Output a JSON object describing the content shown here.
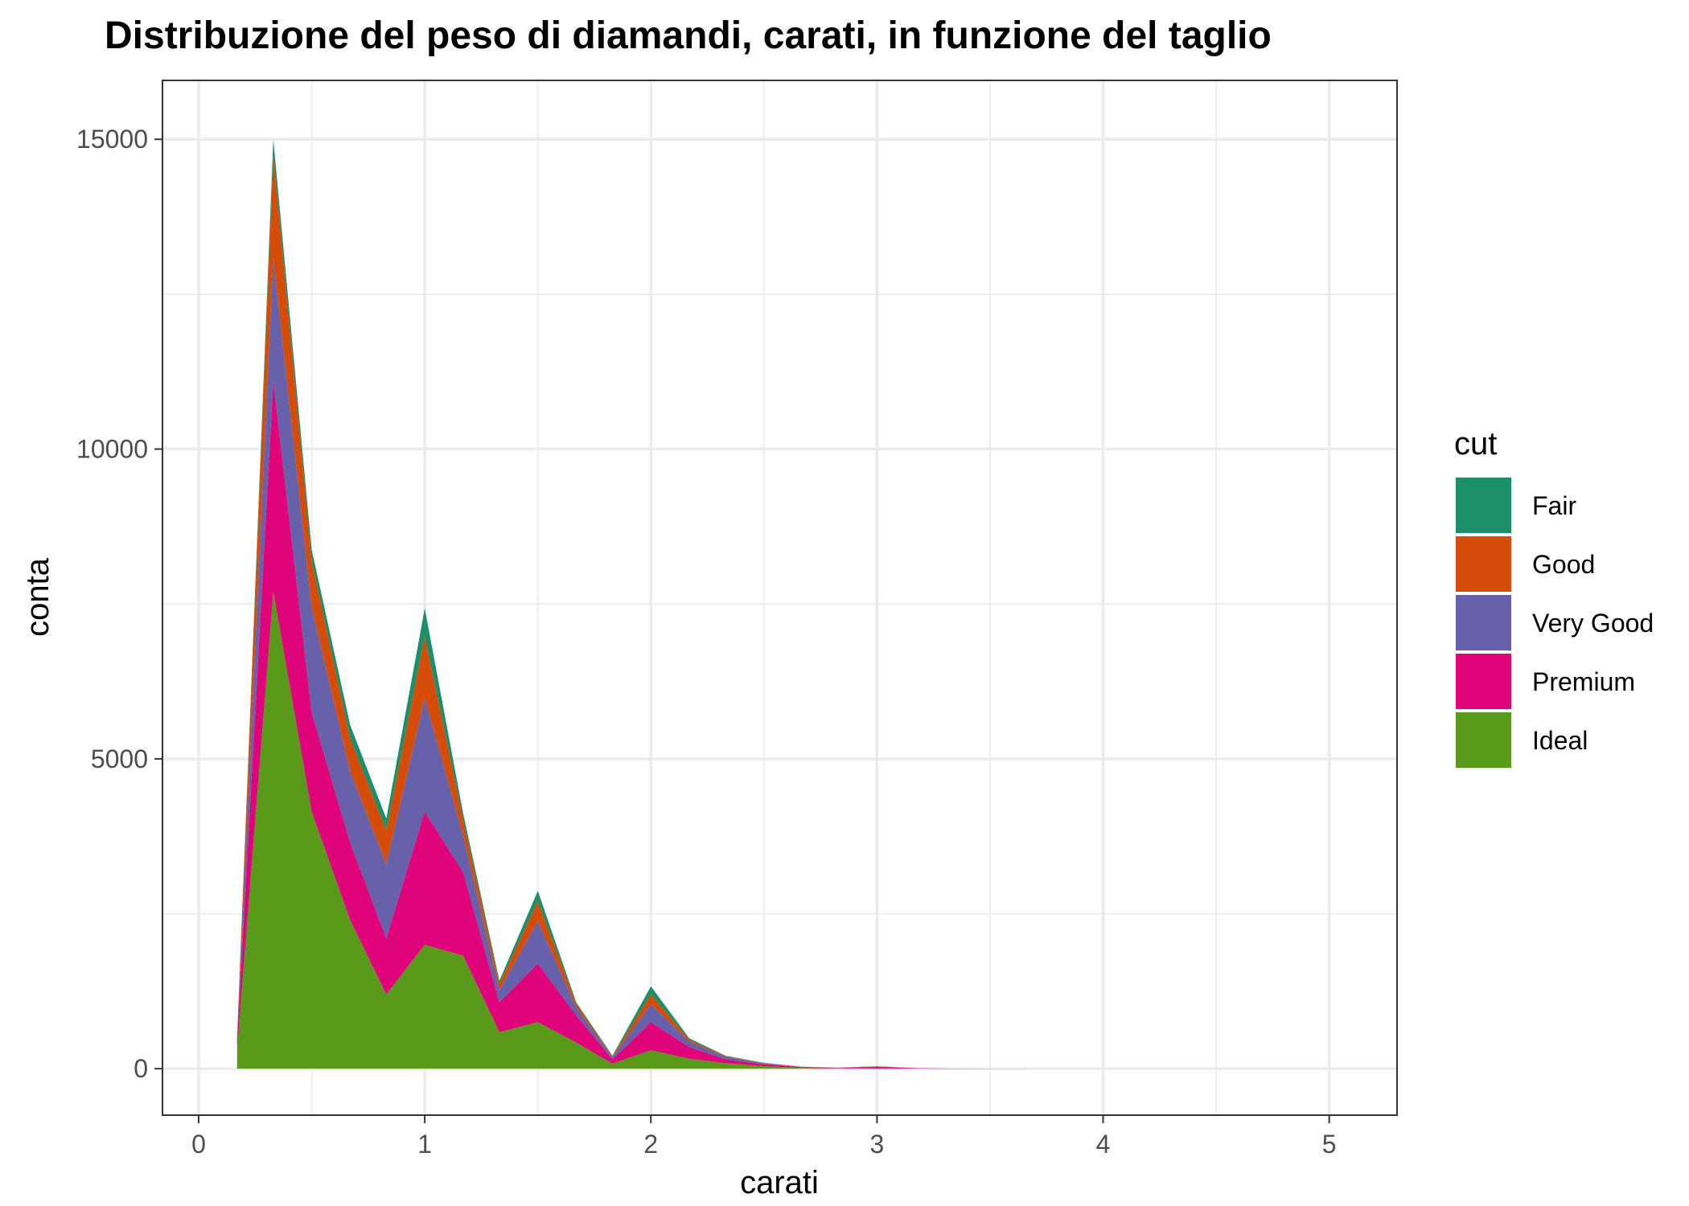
{
  "chart_data": {
    "type": "area",
    "stacked": true,
    "title": "Distribuzione del peso di diamandi, carati, in funzione del taglio",
    "xlabel": "carati",
    "ylabel": "conta",
    "xlim": [
      -0.16,
      5.3
    ],
    "ylim": [
      -750,
      15950
    ],
    "x_ticks": [
      0,
      1,
      2,
      3,
      4,
      5
    ],
    "y_ticks": [
      0,
      5000,
      10000,
      15000
    ],
    "grid": true,
    "legend": {
      "title": "cut",
      "position": "right"
    },
    "x": [
      0.17,
      0.33,
      0.5,
      0.67,
      0.83,
      1.0,
      1.17,
      1.33,
      1.5,
      1.67,
      1.83,
      2.0,
      2.17,
      2.33,
      2.5,
      2.67,
      2.83,
      3.0,
      3.17,
      3.33,
      3.5,
      3.67,
      3.83,
      4.0,
      4.17,
      4.33,
      4.5,
      4.67,
      4.83,
      5.0
    ],
    "series": [
      {
        "name": "Ideal",
        "color": "#5A9A1B",
        "values": [
          300,
          7700,
          4150,
          2400,
          1200,
          2000,
          1820,
          590,
          750,
          420,
          80,
          300,
          160,
          90,
          40,
          12,
          5,
          4,
          2,
          1,
          0,
          0,
          0,
          0,
          0,
          0,
          0,
          0,
          0,
          0
        ]
      },
      {
        "name": "Premium",
        "color": "#E0047B",
        "values": [
          120,
          3400,
          1600,
          1250,
          900,
          2150,
          1350,
          480,
          950,
          440,
          70,
          450,
          190,
          60,
          30,
          12,
          8,
          25,
          6,
          2,
          1,
          0,
          0,
          0,
          0,
          0,
          0,
          0,
          0,
          0
        ]
      },
      {
        "name": "Very Good",
        "color": "#6661AA",
        "values": [
          80,
          2000,
          1700,
          1150,
          1200,
          1830,
          600,
          200,
          680,
          130,
          30,
          290,
          90,
          40,
          15,
          5,
          2,
          5,
          1,
          0,
          0,
          0,
          0,
          0,
          0,
          0,
          0,
          0,
          0,
          0
        ]
      },
      {
        "name": "Good",
        "color": "#D44C08",
        "values": [
          40,
          1650,
          750,
          530,
          550,
          1000,
          250,
          100,
          320,
          60,
          15,
          160,
          30,
          10,
          5,
          2,
          1,
          3,
          1,
          0,
          0,
          0,
          0,
          0,
          0,
          0,
          0,
          0,
          0,
          0
        ]
      },
      {
        "name": "Fair",
        "color": "#1B8F69",
        "values": [
          10,
          250,
          180,
          220,
          190,
          450,
          100,
          50,
          170,
          20,
          15,
          130,
          20,
          10,
          5,
          2,
          1,
          3,
          1,
          0,
          0,
          0,
          0,
          0,
          0,
          0,
          0,
          0,
          0,
          0
        ]
      }
    ],
    "legend_order": [
      "Fair",
      "Good",
      "Very Good",
      "Premium",
      "Ideal"
    ]
  }
}
